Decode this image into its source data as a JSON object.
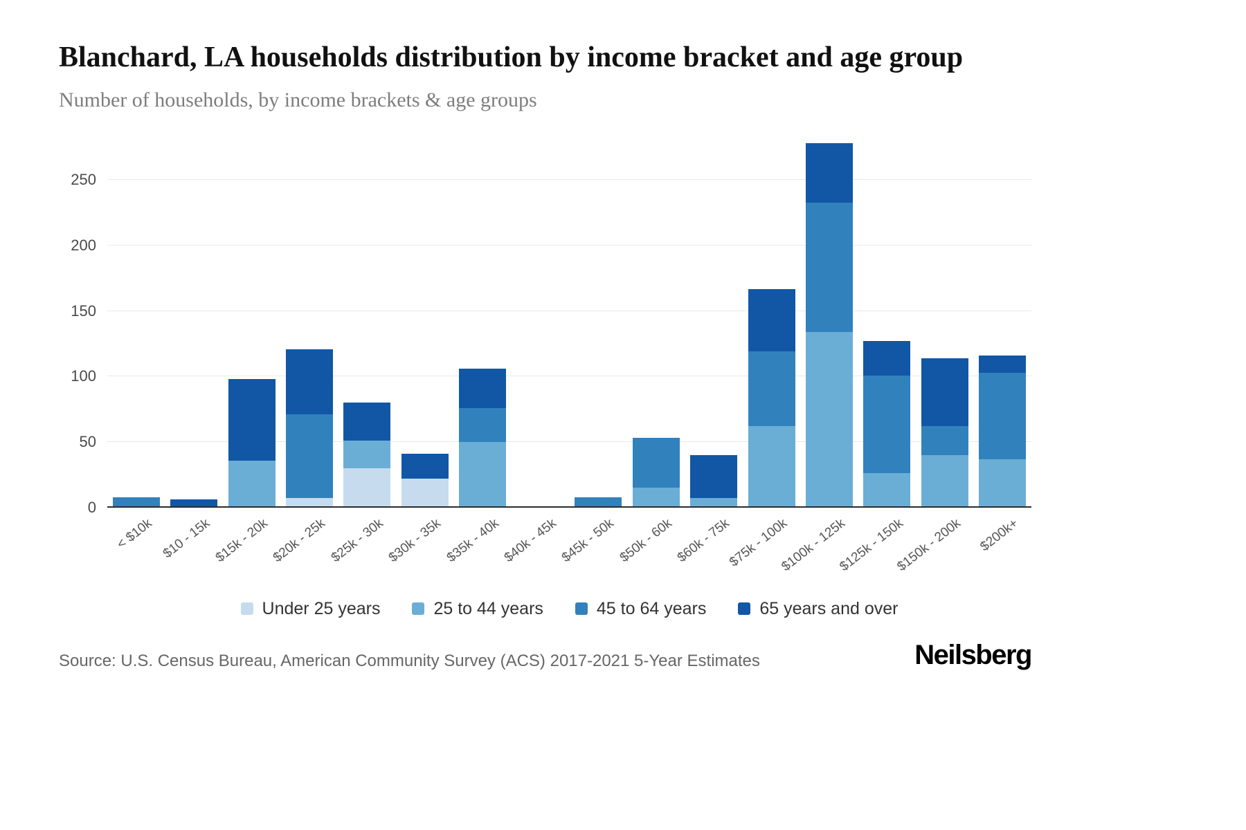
{
  "header": {
    "title": "Blanchard, LA households distribution by income bracket and age group",
    "subtitle": "Number of households, by income brackets & age groups"
  },
  "chart_data": {
    "type": "bar",
    "stacked": true,
    "title": "Blanchard, LA households distribution by income bracket and age group",
    "xlabel": "",
    "ylabel": "Number of households",
    "ylim": [
      0,
      280
    ],
    "yticks": [
      0,
      50,
      100,
      150,
      200,
      250
    ],
    "grid": true,
    "legend_position": "bottom",
    "categories": [
      "< $10k",
      "$10 - 15k",
      "$15k - 20k",
      "$20k - 25k",
      "$25k - 30k",
      "$30k - 35k",
      "$35k - 40k",
      "$40k - 45k",
      "$45k - 50k",
      "$50k - 60k",
      "$60k - 75k",
      "$75k - 100k",
      "$100k - 125k",
      "$125k - 150k",
      "$150k - 200k",
      "$200k+"
    ],
    "series": [
      {
        "name": "Under 25 years",
        "color": "#c6dcee",
        "values": [
          0,
          0,
          0,
          7,
          30,
          22,
          0,
          0,
          0,
          0,
          0,
          0,
          0,
          0,
          0,
          0
        ]
      },
      {
        "name": "25 to 44 years",
        "color": "#6aaed6",
        "values": [
          0,
          0,
          36,
          0,
          21,
          0,
          50,
          0,
          0,
          15,
          7,
          62,
          134,
          26,
          40,
          37
        ]
      },
      {
        "name": "45 to 64 years",
        "color": "#3181bd",
        "values": [
          8,
          0,
          0,
          64,
          0,
          0,
          26,
          0,
          8,
          38,
          0,
          57,
          99,
          75,
          22,
          66
        ]
      },
      {
        "name": "65 years and over",
        "color": "#1157a6",
        "values": [
          0,
          6,
          62,
          50,
          29,
          19,
          30,
          0,
          0,
          0,
          33,
          48,
          45,
          26,
          52,
          13
        ]
      }
    ]
  },
  "footer": {
    "source": "Source: U.S. Census Bureau, American Community Survey (ACS) 2017-2021 5-Year Estimates",
    "logo": "Neilsberg"
  }
}
